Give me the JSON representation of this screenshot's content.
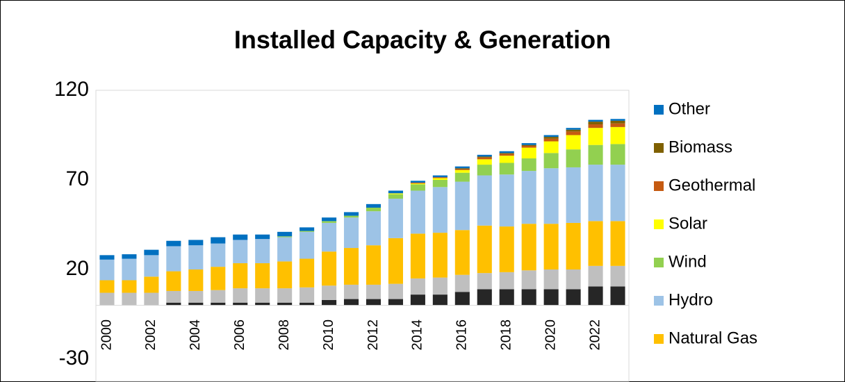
{
  "chart_data": {
    "type": "bar",
    "stacked": true,
    "title": "Installed Capacity & Generation",
    "categories": [
      "2000",
      null,
      "2002",
      null,
      "2004",
      null,
      "2006",
      null,
      "2008",
      null,
      "2010",
      null,
      "2012",
      null,
      "2014",
      null,
      "2016",
      null,
      "2018",
      null,
      "2020",
      null,
      "2022",
      null
    ],
    "series": [
      {
        "color": "#262626",
        "values": [
          0,
          0,
          0,
          1.5,
          1.5,
          1.5,
          1.5,
          1.5,
          1.5,
          1.5,
          3,
          3.5,
          3.5,
          3.5,
          6,
          6,
          7.5,
          9,
          9,
          9,
          9,
          9,
          10.5,
          10.5
        ]
      },
      {
        "color": "#bfbfbf",
        "values": [
          7,
          7,
          7,
          6.5,
          6.5,
          7,
          8,
          8,
          8,
          8.5,
          8,
          8,
          8,
          8.5,
          9,
          9.5,
          9.5,
          9,
          9.5,
          10.5,
          11,
          11,
          11.5,
          11.5
        ]
      },
      {
        "name": "Natural Gas",
        "color": "#ffc000",
        "values": [
          7,
          7,
          9,
          11,
          12,
          13,
          14,
          14,
          15,
          16,
          19,
          20.5,
          22,
          25.5,
          25,
          25,
          25,
          26.5,
          25.5,
          26,
          25.5,
          26,
          25,
          25
        ]
      },
      {
        "name": "Hydro",
        "color": "#9dc3e6",
        "values": [
          11.5,
          12,
          12,
          14,
          13.5,
          13,
          13,
          13.5,
          13.5,
          15,
          16,
          17,
          19,
          22,
          24,
          25.5,
          27,
          28,
          29,
          29.5,
          31,
          31,
          31.5,
          31.5
        ]
      },
      {
        "name": "Wind",
        "color": "#92d050",
        "values": [
          0,
          0,
          0,
          0,
          0,
          0,
          0,
          0,
          0.5,
          0.5,
          1,
          1,
          2,
          2.5,
          3.5,
          4,
          5,
          6,
          6.5,
          7,
          8.5,
          10,
          11,
          11.5
        ]
      },
      {
        "name": "Solar",
        "color": "#ffff00",
        "values": [
          0,
          0,
          0,
          0,
          0,
          0,
          0,
          0,
          0,
          0,
          0,
          0,
          0,
          0.5,
          0.5,
          1,
          1.5,
          3,
          4,
          6,
          6.5,
          8,
          9.5,
          9.5
        ]
      },
      {
        "name": "Geothermal",
        "color": "#c55a11",
        "values": [
          0,
          0,
          0,
          0,
          0,
          0,
          0,
          0,
          0,
          0,
          0,
          0,
          0,
          0,
          0.5,
          0.5,
          0.5,
          1,
          1,
          1,
          1.5,
          2,
          2,
          2
        ]
      },
      {
        "name": "Biomass",
        "color": "#7f6000",
        "values": [
          0,
          0,
          0,
          0,
          0,
          0,
          0,
          0,
          0,
          0,
          0,
          0,
          0,
          0,
          0,
          0,
          0.5,
          0.5,
          0.5,
          0.5,
          1,
          1,
          1.5,
          1.5
        ]
      },
      {
        "name": "Other",
        "color": "#0070c0",
        "values": [
          2.5,
          2.5,
          3,
          3,
          3,
          3.5,
          3,
          2.5,
          2.5,
          2,
          2,
          2,
          2,
          1.5,
          1,
          1,
          1,
          1,
          1,
          1,
          1,
          1,
          1,
          1
        ]
      }
    ],
    "ylim": [
      -30,
      120
    ],
    "yticks": [
      -30,
      20,
      70,
      120
    ],
    "legend": "right"
  }
}
